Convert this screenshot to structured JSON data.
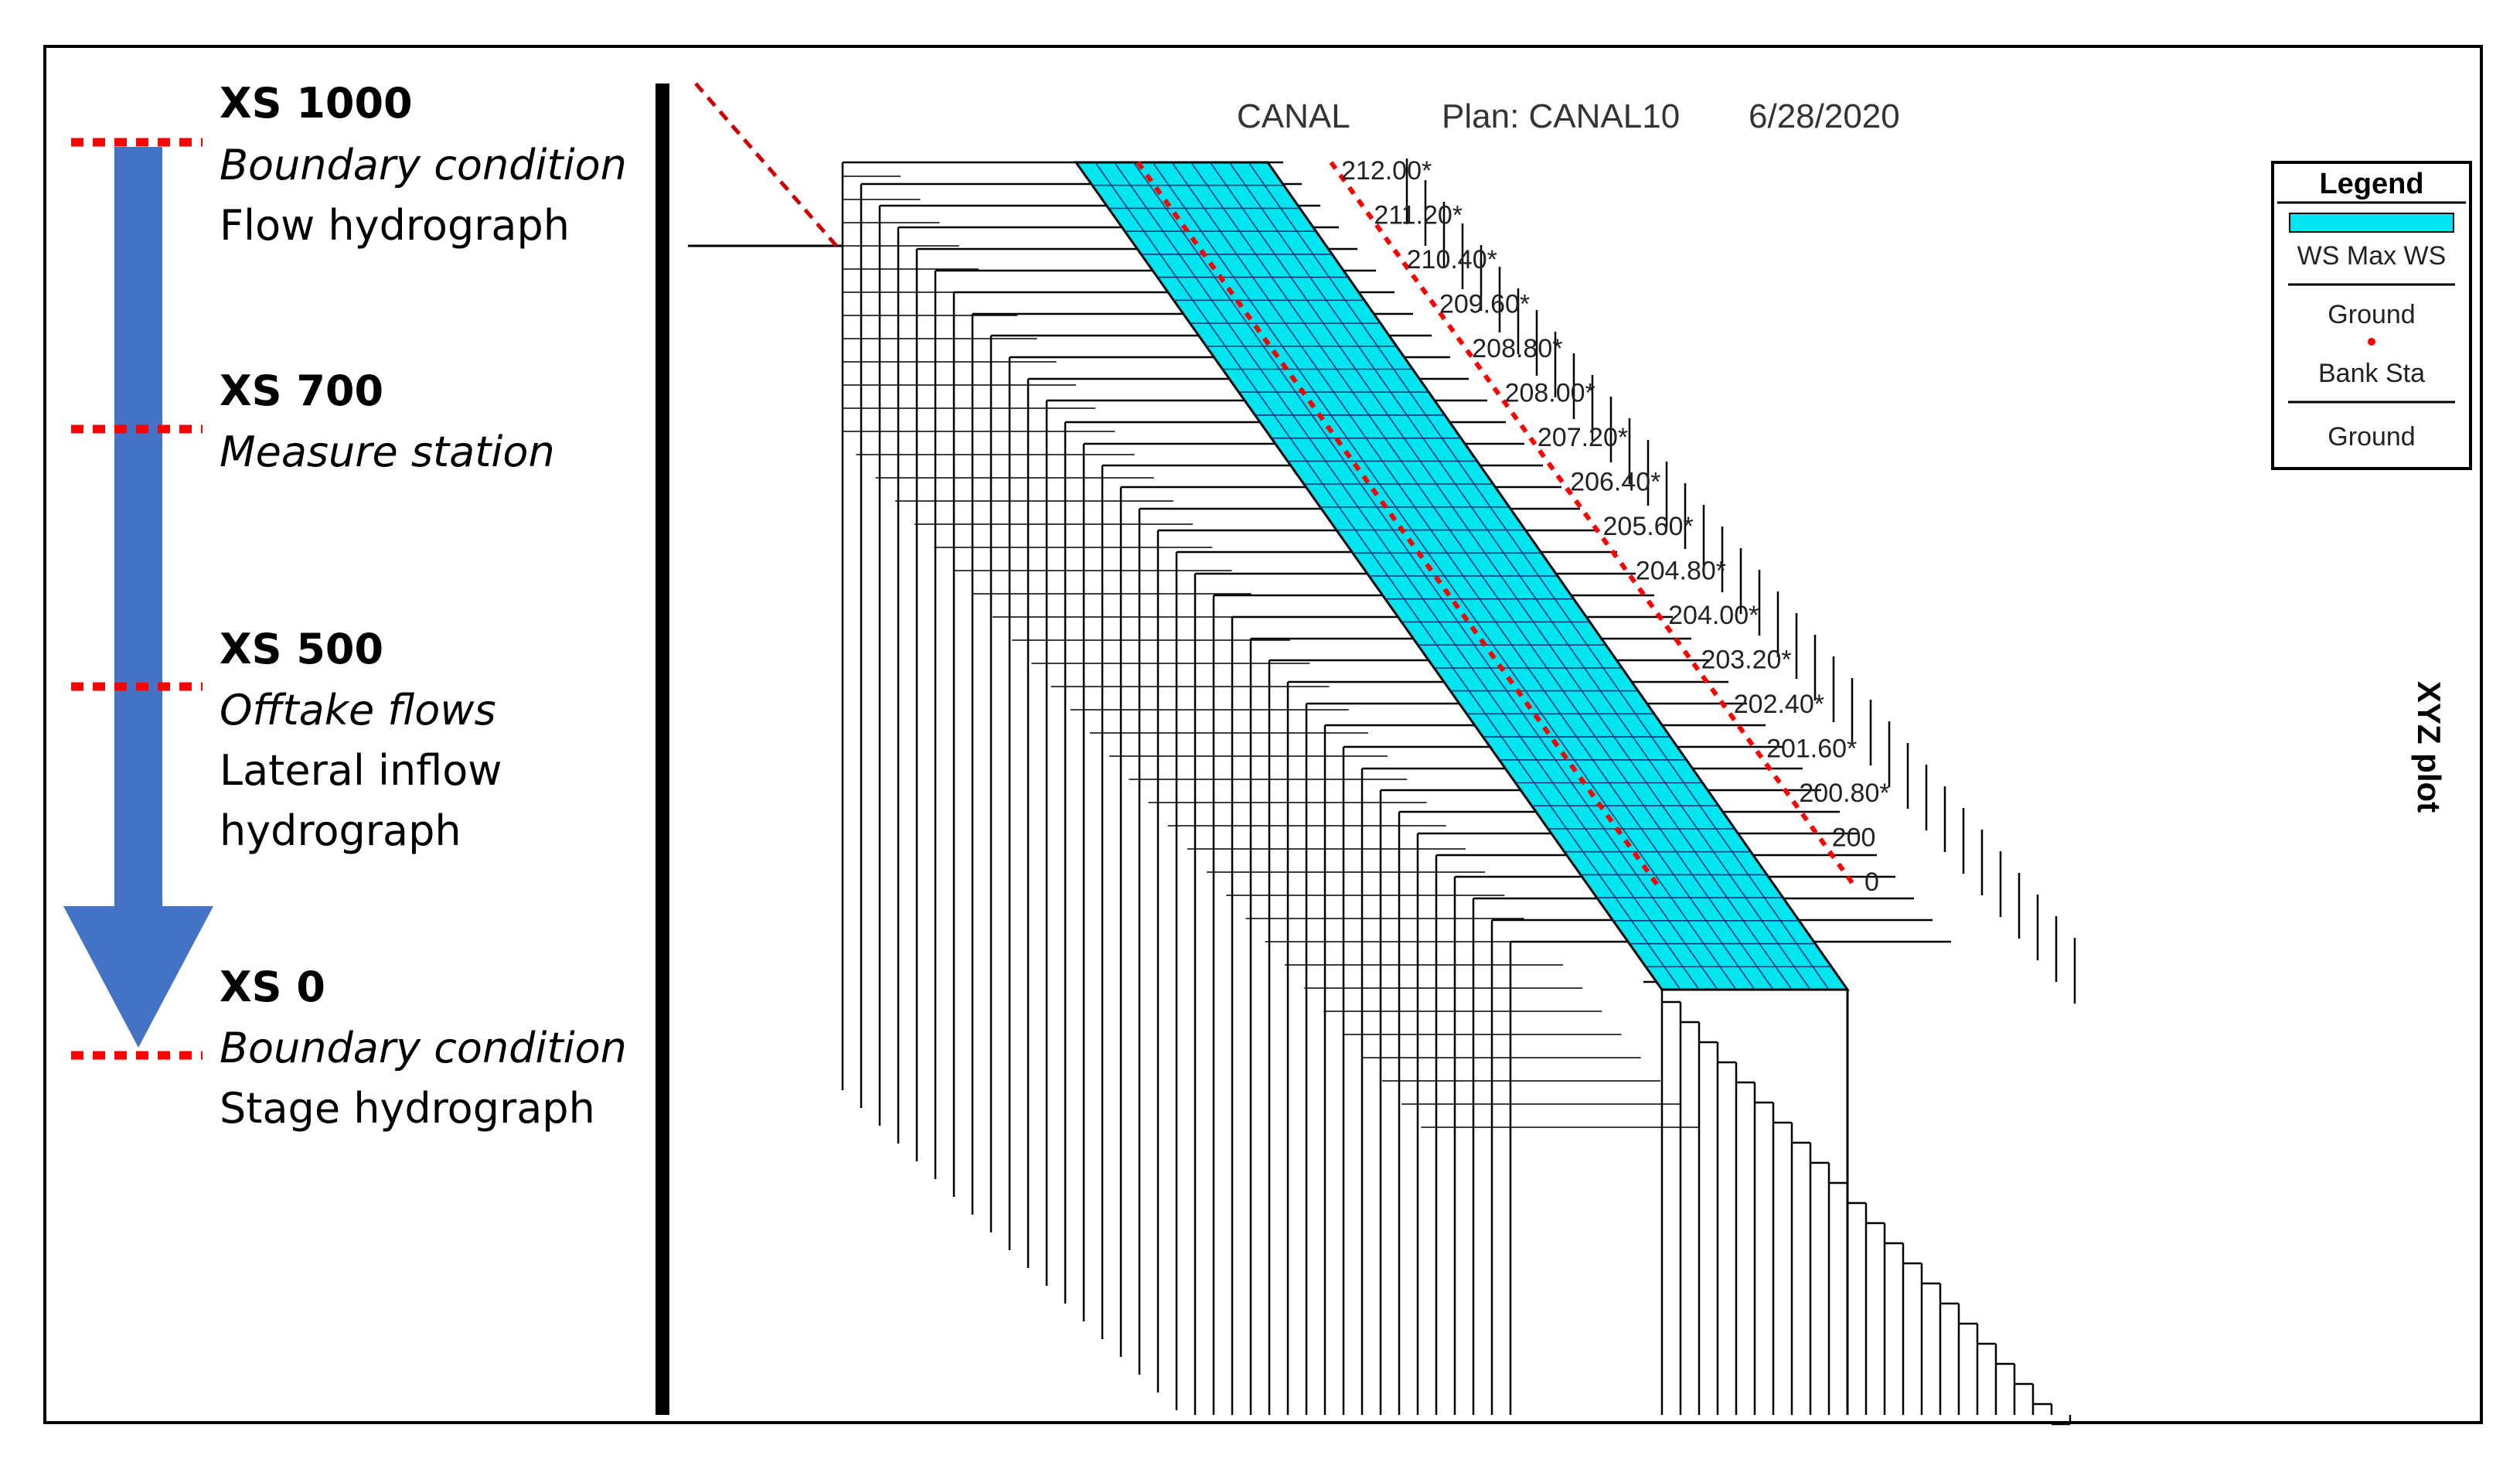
{
  "left_panel": {
    "sections": [
      {
        "heading": "XS 1000",
        "lines": [
          {
            "text": "Boundary condition",
            "italic": true
          },
          {
            "text": "Flow hydrograph",
            "italic": false
          }
        ]
      },
      {
        "heading": "XS 700",
        "lines": [
          {
            "text": "Measure station",
            "italic": true
          }
        ]
      },
      {
        "heading": "XS 500",
        "lines": [
          {
            "text": "Offtake flows",
            "italic": true
          },
          {
            "text": "Lateral inflow",
            "italic": false
          },
          {
            "text": "hydrograph",
            "italic": false
          }
        ]
      },
      {
        "heading": "XS 0",
        "lines": [
          {
            "text": "Boundary condition",
            "italic": true
          },
          {
            "text": "Stage hydrograph",
            "italic": false
          }
        ]
      }
    ],
    "arrow_color": "#4472C4",
    "marker_color": "#FF0000"
  },
  "plot": {
    "title_river": "CANAL",
    "title_plan": "Plan: CANAL10",
    "title_date": "6/28/2020",
    "stations": [
      "212.00*",
      "211.20*",
      "210.40*",
      "209.60*",
      "208.80*",
      "208.00*",
      "207.20*",
      "206.40*",
      "205.60*",
      "204.80*",
      "204.00*",
      "203.20*",
      "202.40*",
      "201.60*",
      "200.80*",
      "200",
      "0"
    ],
    "water_color": "#00E5F0",
    "grid_color": "#000000",
    "bank_color": "#FF0000",
    "side_label": "XYZ plot"
  },
  "legend": {
    "title": "Legend",
    "items": [
      "WS Max WS",
      "Ground",
      "Bank Sta",
      "Ground"
    ]
  }
}
